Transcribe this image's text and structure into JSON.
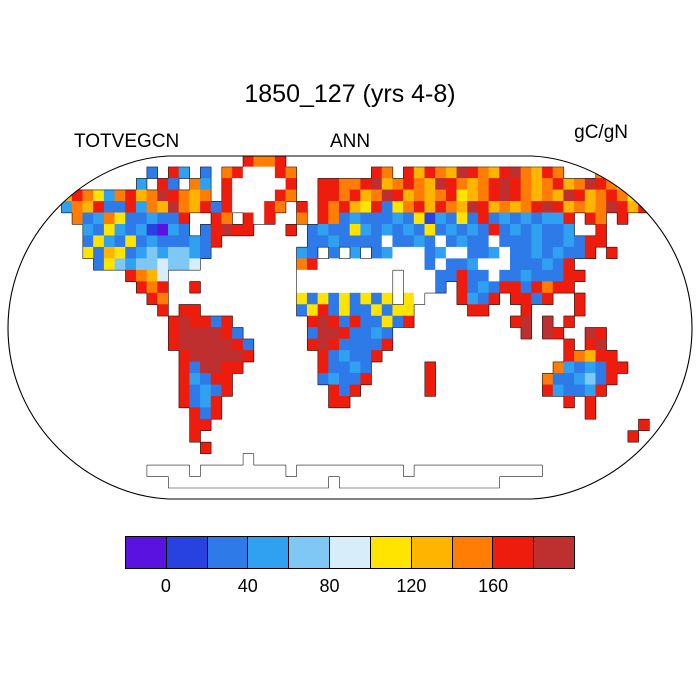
{
  "title": "1850_127 (yrs 4-8)",
  "labels": {
    "variable": "TOTVEGCN",
    "season": "ANN",
    "units": "gC/gN"
  },
  "colorbar": {
    "ticks": [
      {
        "label": "0",
        "index": 1
      },
      {
        "label": "40",
        "index": 3
      },
      {
        "label": "80",
        "index": 5
      },
      {
        "label": "120",
        "index": 7
      },
      {
        "label": "160",
        "index": 9
      }
    ]
  },
  "chart_data": {
    "type": "heatmap",
    "title": "1850_127 (yrs 4-8)",
    "variable": "TOTVEGCN",
    "season": "ANN",
    "units": "gC/gN",
    "projection": "robinson",
    "levels": [
      0,
      20,
      40,
      60,
      80,
      100,
      120,
      140,
      160,
      180
    ],
    "palette": [
      "#5A12E1",
      "#2742E0",
      "#2D7AE8",
      "#2FA1F0",
      "#7FC8F5",
      "#D8EDFA",
      "#FFE400",
      "#FFB400",
      "#FF7D05",
      "#EE1C0C",
      "#BE2F2F"
    ],
    "missing_color": "#ffffff",
    "grid_key": {
      ".": "ocean",
      "w": "land-missing-white",
      "0123456789a": "palette index 0-10"
    },
    "grid": [
      "......................9889......................................",
      ".............2.93.2.89www98.......98.97987a9879a8798...89.......",
      "............3.92.83.9wwwww9..99889a78987a98789a9878978a98789....",
      ".....798638978a9878.9wwww98..998978a9787896789a98787a97898698...",
      ".....3879229387a87929www98.9.98976926897987a978789a97878a979....",
      "......82386223229..98.9w9..8.982322232613262923232339.98.9......",
      ".......3263231032.29a99...9.2322632323262323292323223..9........",
      ".......2632623222329........2232222w2232w2322w2223223299........",
      ".......627623434432........32.2.3.23www23ww223w22323229.9.......",
      "........2643445445.........89wwwwwwwwww2w223www222329...........",
      "...........9875............wwwwwwwww.www22922w22322299..........",
      "............989..9.........wwwwwwwww.www2.92329929899...........",
      ".............98............626262626.6w...9329.9929..9..........",
      "..............9.99.........26926226266.....99...9....9..........",
      "...............9a9929.......9a92922629.........9a.a.9...........",
      "...............9aaaa92......2aa92232............a.a9..a9........",
      "...............9aaaaa92.....9a922229................9.9a........",
      "................9aaaaa9......923229.................98799.......",
      "................92aa99.......92232.....9...........8323299......",
      "................93299........23229.....9..........8223429.......",
      "................92329.........929......9..........932239........",
      "................9239..........99....................9.9.........",
      ".................929..................................9.........",
      ".................99........................................9....",
      ".................9........................................9.....",
      "..................9.............................................",
      "......................w.........................................",
      ".............wwww.wwwwwwww.wwwwwwwwww.wwwwwwwwwwww..............",
      "...............wwwwwwwwwwwwwww.wwwwwwwwwwwwwww..................",
      "................................................................"
    ]
  }
}
